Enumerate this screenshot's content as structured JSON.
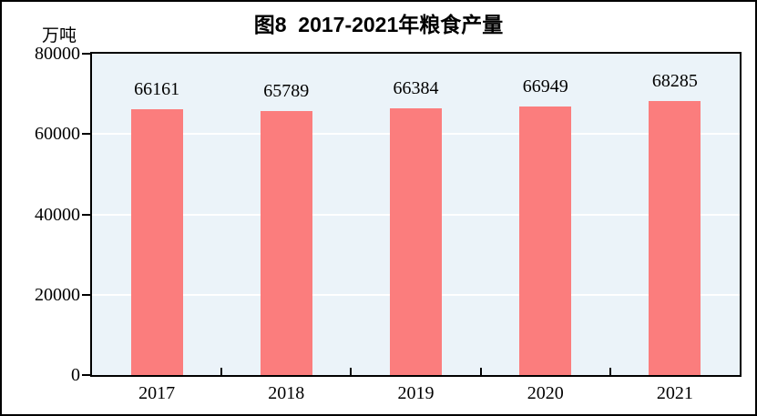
{
  "title": "图8  2017-2021年粮食产量",
  "unit_label": "万吨",
  "colors": {
    "bar": "#fb7d7d",
    "plot_bg": "#ebf3f9",
    "gridline": "#ffffff",
    "axis": "#000000",
    "text": "#000000"
  },
  "chart_data": {
    "type": "bar",
    "title": "图8  2017-2021年粮食产量",
    "categories": [
      "2017",
      "2018",
      "2019",
      "2020",
      "2021"
    ],
    "values": [
      66161,
      65789,
      66384,
      66949,
      68285
    ],
    "data_labels": [
      "66161",
      "65789",
      "66384",
      "66949",
      "68285"
    ],
    "xlabel": "",
    "ylabel": "万吨",
    "ylim": [
      0,
      80000
    ],
    "yticks": [
      0,
      20000,
      40000,
      60000,
      80000
    ],
    "ytick_labels": [
      "0",
      "20000",
      "40000",
      "60000",
      "80000"
    ],
    "grid": true,
    "gridline_color": "white",
    "legend": false,
    "bar_color": "#fb7d7d",
    "plot_background": "#ebf3f9"
  }
}
